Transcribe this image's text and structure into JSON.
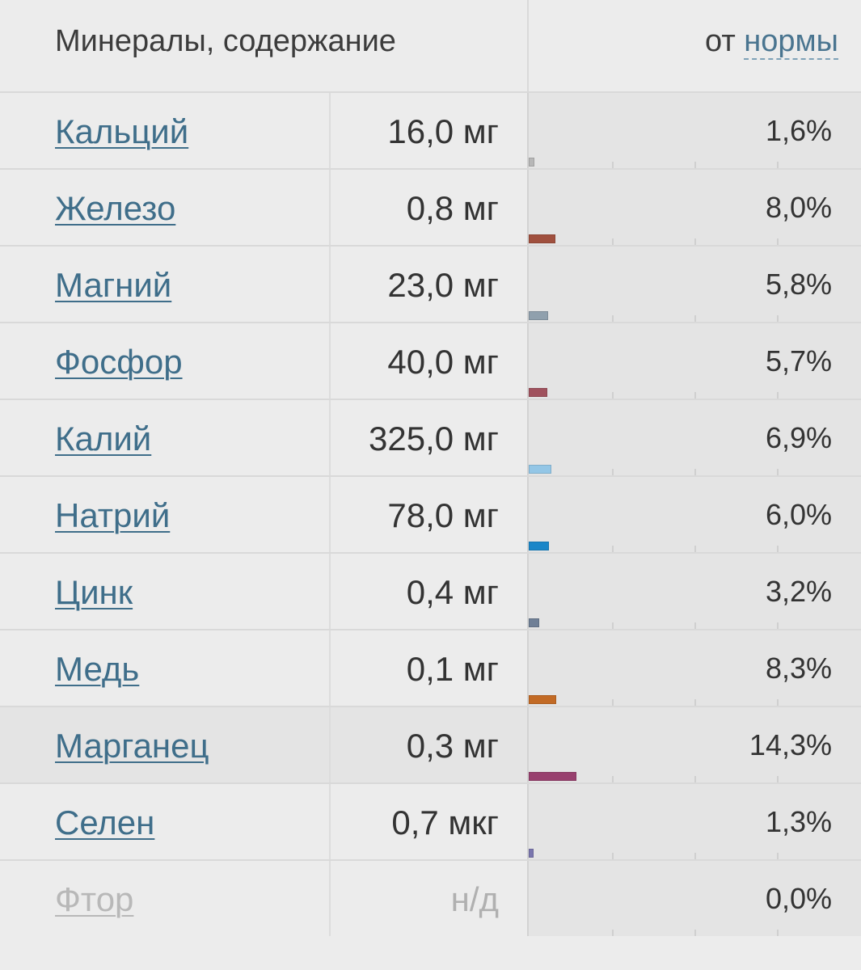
{
  "header": {
    "left_title": "Минералы, содержание",
    "right_prefix": "от",
    "right_link": "нормы"
  },
  "rows": [
    {
      "name": "Кальций",
      "amount": "16,0 мг",
      "percent": "1,6%",
      "value": 1.6,
      "color": "#b7b7b7"
    },
    {
      "name": "Железо",
      "amount": "0,8 мг",
      "percent": "8,0%",
      "value": 8.0,
      "color": "#a0503e"
    },
    {
      "name": "Магний",
      "amount": "23,0 мг",
      "percent": "5,8%",
      "value": 5.8,
      "color": "#90a0ad"
    },
    {
      "name": "Фосфор",
      "amount": "40,0 мг",
      "percent": "5,7%",
      "value": 5.7,
      "color": "#a0525e"
    },
    {
      "name": "Калий",
      "amount": "325,0 мг",
      "percent": "6,9%",
      "value": 6.9,
      "color": "#93c6e6"
    },
    {
      "name": "Натрий",
      "amount": "78,0 мг",
      "percent": "6,0%",
      "value": 6.0,
      "color": "#1a86c8"
    },
    {
      "name": "Цинк",
      "amount": "0,4 мг",
      "percent": "3,2%",
      "value": 3.2,
      "color": "#6f7f96"
    },
    {
      "name": "Медь",
      "amount": "0,1 мг",
      "percent": "8,3%",
      "value": 8.3,
      "color": "#c26a25"
    },
    {
      "name": "Марганец",
      "amount": "0,3 мг",
      "percent": "14,3%",
      "value": 14.3,
      "color": "#98406e",
      "highlight": true
    },
    {
      "name": "Селен",
      "amount": "0,7 мкг",
      "percent": "1,3%",
      "value": 1.3,
      "color": "#7a76ae"
    },
    {
      "name": "Фтор",
      "amount": "н/д",
      "percent": "0,0%",
      "value": 0.0,
      "color": "#cccccc",
      "unavailable": true
    }
  ],
  "bar_scale_max_percent": 100
}
